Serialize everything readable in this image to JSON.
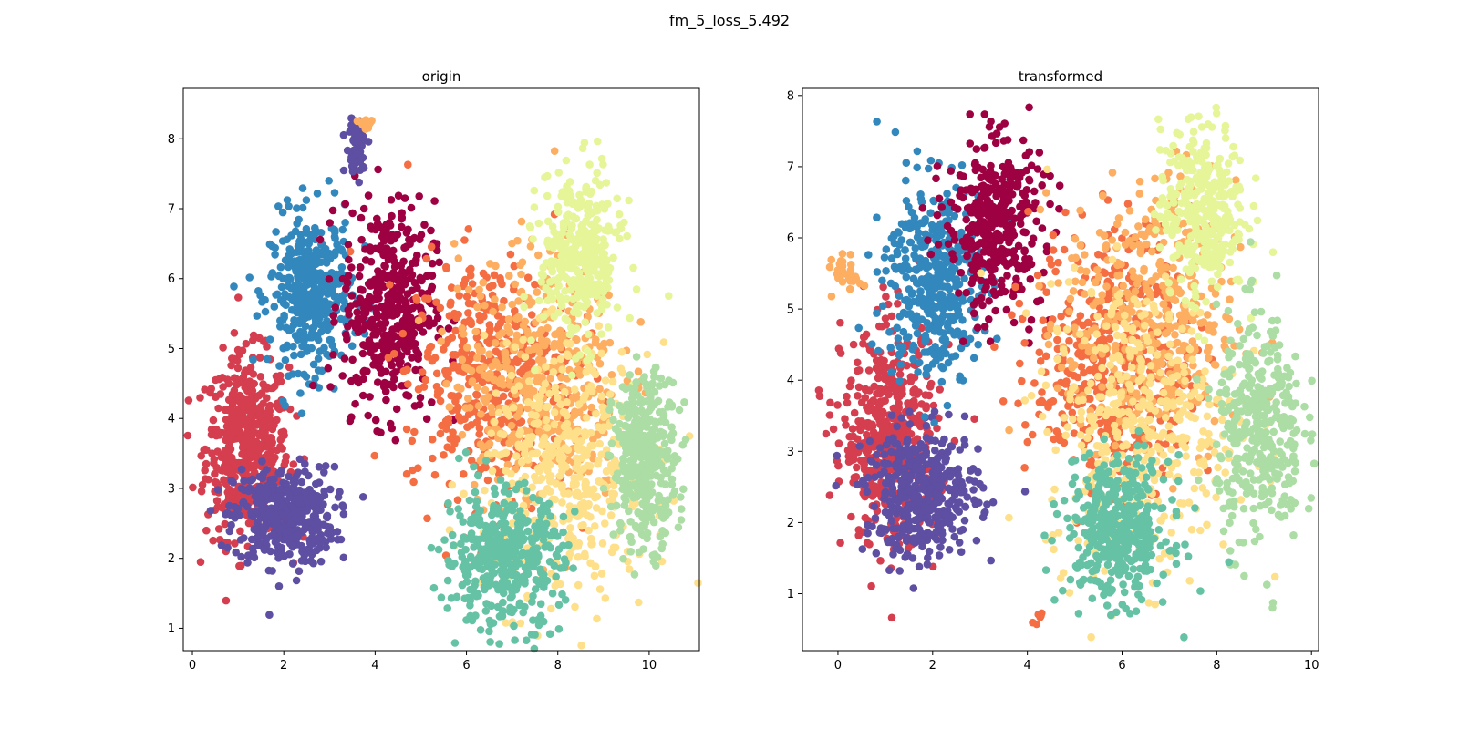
{
  "suptitle": "fm_5_loss_5.492",
  "colors": {
    "c0": "#9e0142",
    "c1": "#d53e4f",
    "c2": "#f46d43",
    "c3": "#fdae61",
    "c4": "#fee08b",
    "c5": "#e6f598",
    "c6": "#abdda4",
    "c7": "#66c2a5",
    "c8": "#3288bd",
    "c9": "#5e4fa2"
  },
  "chart_data": [
    {
      "type": "scatter",
      "title": "origin",
      "xlabel": "",
      "ylabel": "",
      "xlim": [
        -0.2,
        11.1
      ],
      "ylim": [
        0.68,
        8.72
      ],
      "xticks": [
        0,
        2,
        4,
        6,
        8,
        10
      ],
      "yticks": [
        1,
        2,
        3,
        4,
        5,
        6,
        7,
        8
      ],
      "grid": false,
      "clusters": [
        {
          "color": "c1",
          "cx": 1.2,
          "cy": 3.6,
          "sx": 0.45,
          "sy": 0.65,
          "n": 520
        },
        {
          "color": "c9",
          "cx": 2.0,
          "cy": 2.6,
          "sx": 0.55,
          "sy": 0.35,
          "n": 420
        },
        {
          "color": "c8",
          "cx": 2.6,
          "cy": 5.8,
          "sx": 0.45,
          "sy": 0.55,
          "n": 420
        },
        {
          "color": "c0",
          "cx": 4.3,
          "cy": 5.6,
          "sx": 0.5,
          "sy": 0.75,
          "n": 430
        },
        {
          "color": "c2",
          "cx": 6.5,
          "cy": 4.6,
          "sx": 0.9,
          "sy": 0.85,
          "n": 450
        },
        {
          "color": "c3",
          "cx": 7.6,
          "cy": 4.6,
          "sx": 0.9,
          "sy": 0.9,
          "n": 430
        },
        {
          "color": "c4",
          "cx": 8.2,
          "cy": 3.2,
          "sx": 0.9,
          "sy": 0.9,
          "n": 430
        },
        {
          "color": "c5",
          "cx": 8.5,
          "cy": 6.3,
          "sx": 0.45,
          "sy": 0.6,
          "n": 360
        },
        {
          "color": "c6",
          "cx": 9.9,
          "cy": 3.4,
          "sx": 0.35,
          "sy": 0.6,
          "n": 380
        },
        {
          "color": "c7",
          "cx": 6.8,
          "cy": 2.0,
          "sx": 0.65,
          "sy": 0.5,
          "n": 420
        },
        {
          "color": "c9",
          "cx": 3.6,
          "cy": 7.9,
          "sx": 0.12,
          "sy": 0.2,
          "n": 60
        },
        {
          "color": "c3",
          "cx": 3.8,
          "cy": 8.2,
          "sx": 0.1,
          "sy": 0.06,
          "n": 20
        }
      ]
    },
    {
      "type": "scatter",
      "title": "transformed",
      "xlabel": "",
      "ylabel": "",
      "xlim": [
        -0.75,
        10.15
      ],
      "ylim": [
        0.2,
        8.1
      ],
      "xticks": [
        0,
        2,
        4,
        6,
        8,
        10
      ],
      "yticks": [
        1,
        2,
        3,
        4,
        5,
        6,
        7,
        8
      ],
      "grid": false,
      "clusters": [
        {
          "color": "c1",
          "cx": 1.1,
          "cy": 3.2,
          "sx": 0.5,
          "sy": 0.75,
          "n": 500
        },
        {
          "color": "c9",
          "cx": 1.8,
          "cy": 2.4,
          "sx": 0.6,
          "sy": 0.45,
          "n": 420
        },
        {
          "color": "c8",
          "cx": 2.0,
          "cy": 5.4,
          "sx": 0.5,
          "sy": 0.7,
          "n": 420
        },
        {
          "color": "c0",
          "cx": 3.3,
          "cy": 6.2,
          "sx": 0.5,
          "sy": 0.6,
          "n": 400
        },
        {
          "color": "c2",
          "cx": 5.8,
          "cy": 4.3,
          "sx": 0.85,
          "sy": 0.9,
          "n": 450
        },
        {
          "color": "c3",
          "cx": 6.6,
          "cy": 4.8,
          "sx": 0.9,
          "sy": 1.0,
          "n": 430
        },
        {
          "color": "c4",
          "cx": 6.4,
          "cy": 3.4,
          "sx": 1.0,
          "sy": 1.0,
          "n": 430
        },
        {
          "color": "c5",
          "cx": 7.7,
          "cy": 6.4,
          "sx": 0.45,
          "sy": 0.6,
          "n": 350
        },
        {
          "color": "c6",
          "cx": 8.9,
          "cy": 3.3,
          "sx": 0.45,
          "sy": 0.8,
          "n": 380
        },
        {
          "color": "c7",
          "cx": 5.9,
          "cy": 1.9,
          "sx": 0.55,
          "sy": 0.5,
          "n": 420
        },
        {
          "color": "c3",
          "cx": 0.2,
          "cy": 5.5,
          "sx": 0.15,
          "sy": 0.12,
          "n": 30
        },
        {
          "color": "c2",
          "cx": 4.25,
          "cy": 0.65,
          "sx": 0.05,
          "sy": 0.06,
          "n": 6
        }
      ]
    }
  ]
}
